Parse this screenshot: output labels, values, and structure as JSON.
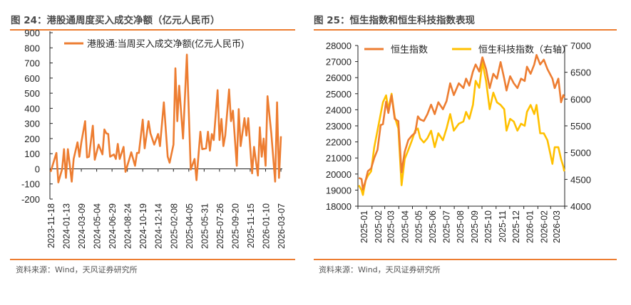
{
  "colors": {
    "accent": "#ED7D31",
    "hsi": "#ED7D31",
    "hstech": "#FFC000",
    "text": "#4a4a4a"
  },
  "left": {
    "title": "图 24：港股通周度买入成交净额（亿元人民币）",
    "source": "资料来源：Wind，天风证券研究所"
  },
  "right": {
    "title": "图 25：恒生指数和恒生科技指数表现",
    "source": "资料来源：Wind，天风证券研究所"
  },
  "chart_data": [
    {
      "type": "line",
      "title": "图 24：港股通周度买入成交净额（亿元人民币）",
      "ylim": [
        -200,
        900
      ],
      "yticks": [
        900,
        800,
        700,
        600,
        500,
        400,
        300,
        200,
        100,
        0,
        -100,
        -200
      ],
      "xlim": [
        "2023-11-18",
        "2026-03-07"
      ],
      "xticks": [
        "2023-11-18",
        "2024-01-13",
        "2024-03-09",
        "2024-05-04",
        "2024-06-29",
        "2024-08-24",
        "2024-10-19",
        "2024-12-14",
        "2025-02-08",
        "2025-04-05",
        "2025-05-31",
        "2025-07-26",
        "2025-09-20",
        "2025-11-15",
        "2026-01-10",
        "2026-03-07"
      ],
      "legend": "top-left",
      "grid": false,
      "series": [
        {
          "name": "港股通:当周买入成交净额(亿元人民币)",
          "color": "#ED7D31",
          "points": [
            [
              "2023-11-18",
              -20
            ],
            [
              "2023-12-09",
              105
            ],
            [
              "2023-12-16",
              -90
            ],
            [
              "2023-12-30",
              0
            ],
            [
              "2024-01-06",
              130
            ],
            [
              "2024-01-13",
              -60
            ],
            [
              "2024-01-20",
              130
            ],
            [
              "2024-02-03",
              -85
            ],
            [
              "2024-02-10",
              65
            ],
            [
              "2024-02-24",
              175
            ],
            [
              "2024-03-02",
              80
            ],
            [
              "2024-03-09",
              175
            ],
            [
              "2024-03-23",
              315
            ],
            [
              "2024-03-30",
              75
            ],
            [
              "2024-04-06",
              80
            ],
            [
              "2024-04-20",
              285
            ],
            [
              "2024-04-27",
              60
            ],
            [
              "2024-05-11",
              160
            ],
            [
              "2024-05-25",
              95
            ],
            [
              "2024-06-01",
              260
            ],
            [
              "2024-06-08",
              235
            ],
            [
              "2024-06-15",
              230
            ],
            [
              "2024-06-22",
              80
            ],
            [
              "2024-07-06",
              95
            ],
            [
              "2024-07-13",
              65
            ],
            [
              "2024-07-20",
              165
            ],
            [
              "2024-07-27",
              65
            ],
            [
              "2024-08-10",
              145
            ],
            [
              "2024-08-17",
              -20
            ],
            [
              "2024-08-31",
              65
            ],
            [
              "2024-09-07",
              110
            ],
            [
              "2024-09-21",
              20
            ],
            [
              "2024-09-28",
              105
            ],
            [
              "2024-10-05",
              105
            ],
            [
              "2024-10-19",
              325
            ],
            [
              "2024-10-26",
              135
            ],
            [
              "2024-11-09",
              315
            ],
            [
              "2024-11-16",
              235
            ],
            [
              "2024-11-30",
              160
            ],
            [
              "2024-12-14",
              230
            ],
            [
              "2024-12-21",
              150
            ],
            [
              "2025-01-04",
              440
            ],
            [
              "2025-01-18",
              80
            ],
            [
              "2025-01-25",
              40
            ],
            [
              "2025-02-08",
              160
            ],
            [
              "2025-02-15",
              665
            ],
            [
              "2025-02-22",
              315
            ],
            [
              "2025-03-01",
              550
            ],
            [
              "2025-03-15",
              200
            ],
            [
              "2025-03-29",
              755
            ],
            [
              "2025-04-12",
              -5
            ],
            [
              "2025-04-26",
              65
            ],
            [
              "2025-05-03",
              -75
            ],
            [
              "2025-05-17",
              245
            ],
            [
              "2025-05-24",
              130
            ],
            [
              "2025-06-07",
              135
            ],
            [
              "2025-06-14",
              245
            ],
            [
              "2025-06-21",
              120
            ],
            [
              "2025-06-28",
              230
            ],
            [
              "2025-07-05",
              190
            ],
            [
              "2025-07-19",
              520
            ],
            [
              "2025-07-26",
              190
            ],
            [
              "2025-08-02",
              330
            ],
            [
              "2025-08-09",
              150
            ],
            [
              "2025-08-16",
              220
            ],
            [
              "2025-08-30",
              525
            ],
            [
              "2025-09-06",
              315
            ],
            [
              "2025-09-13",
              385
            ],
            [
              "2025-09-27",
              20
            ],
            [
              "2025-10-04",
              395
            ],
            [
              "2025-10-11",
              150
            ],
            [
              "2025-10-25",
              335
            ],
            [
              "2025-11-01",
              220
            ],
            [
              "2025-11-08",
              335
            ],
            [
              "2025-11-15",
              145
            ],
            [
              "2025-11-22",
              -30
            ],
            [
              "2025-11-29",
              145
            ],
            [
              "2025-12-13",
              -45
            ],
            [
              "2025-12-20",
              275
            ],
            [
              "2025-12-27",
              80
            ],
            [
              "2026-01-03",
              200
            ],
            [
              "2026-01-10",
              20
            ],
            [
              "2026-01-17",
              480
            ],
            [
              "2026-01-31",
              235
            ],
            [
              "2026-02-14",
              -85
            ],
            [
              "2026-02-21",
              440
            ],
            [
              "2026-02-28",
              -60
            ],
            [
              "2026-03-07",
              215
            ]
          ]
        }
      ]
    },
    {
      "type": "line",
      "title": "图 25：恒生指数和恒生科技指数表现",
      "ylim": [
        18000,
        28000
      ],
      "yticks": [
        28000,
        27000,
        26000,
        25000,
        24000,
        23000,
        22000,
        21000,
        20000,
        19000,
        18000
      ],
      "y2lim": [
        4000,
        7000
      ],
      "y2ticks": [
        7000,
        6500,
        6000,
        5500,
        5000,
        4500,
        4000
      ],
      "xlim": [
        "2025-01-01",
        "2026-04-01"
      ],
      "xticks": [
        "2025-01",
        "2025-02",
        "2025-03",
        "2025-04",
        "2025-05",
        "2025-06",
        "2025-07",
        "2025-08",
        "2025-09",
        "2025-10",
        "2025-11",
        "2025-12",
        "2026-01",
        "2026-02",
        "2026-03"
      ],
      "legend": "top",
      "grid": false,
      "x": [
        "2025-01-03",
        "2025-01-09",
        "2025-01-12",
        "2025-01-18",
        "2025-01-23",
        "2025-01-30",
        "2025-02-06",
        "2025-02-13",
        "2025-02-20",
        "2025-02-25",
        "2025-03-04",
        "2025-03-09",
        "2025-03-16",
        "2025-03-23",
        "2025-03-31",
        "2025-04-07",
        "2025-04-14",
        "2025-04-22",
        "2025-04-30",
        "2025-05-07",
        "2025-05-13",
        "2025-05-18",
        "2025-05-26",
        "2025-06-03",
        "2025-06-11",
        "2025-06-19",
        "2025-06-27",
        "2025-07-07",
        "2025-07-15",
        "2025-07-23",
        "2025-07-31",
        "2025-08-11",
        "2025-08-21",
        "2025-08-27",
        "2025-09-03",
        "2025-09-11",
        "2025-09-17",
        "2025-09-25",
        "2025-10-02",
        "2025-10-10",
        "2025-10-18",
        "2025-10-26",
        "2025-11-03",
        "2025-11-11",
        "2025-11-19",
        "2025-11-24",
        "2025-12-02",
        "2025-12-10",
        "2025-12-18",
        "2025-12-26",
        "2026-01-03",
        "2026-01-08",
        "2026-01-16",
        "2026-01-24",
        "2026-01-29",
        "2026-02-06",
        "2026-02-14",
        "2026-02-22",
        "2026-03-05",
        "2026-03-10",
        "2026-03-18",
        "2026-03-24",
        "2026-03-29",
        "2026-03-31"
      ],
      "series": [
        {
          "name": "恒生指数",
          "axis": "left",
          "color": "#ED7D31",
          "values": [
            19760,
            19690,
            19030,
            19600,
            20180,
            20350,
            21000,
            21500,
            23050,
            23100,
            24500,
            23800,
            24900,
            23440,
            23290,
            20100,
            21380,
            22120,
            22400,
            22560,
            23590,
            23400,
            23300,
            23730,
            24320,
            23730,
            24470,
            24030,
            24540,
            25650,
            24910,
            25650,
            25350,
            25940,
            25500,
            26380,
            26820,
            26380,
            27260,
            26530,
            25350,
            26240,
            25940,
            26970,
            25940,
            25200,
            26090,
            25650,
            25350,
            25940,
            25790,
            26680,
            26240,
            26820,
            27410,
            26820,
            27120,
            26530,
            25940,
            25350,
            25940,
            24470,
            24910,
            24760
          ]
        },
        {
          "name": "恒生科技指数（右轴）",
          "axis": "right",
          "color": "#FFC000",
          "values": [
            4390,
            4300,
            4210,
            4480,
            4570,
            4650,
            5100,
            5410,
            5720,
            5940,
            6070,
            5810,
            6100,
            5670,
            5450,
            4390,
            4880,
            5050,
            5230,
            5410,
            5450,
            5270,
            5190,
            5270,
            5410,
            5100,
            5360,
            5230,
            5450,
            5720,
            5410,
            5540,
            5580,
            5760,
            5630,
            5890,
            6340,
            6210,
            6690,
            6340,
            5810,
            6120,
            5940,
            5890,
            5810,
            5410,
            5630,
            5580,
            5410,
            5540,
            5500,
            5760,
            5890,
            5720,
            5890,
            5360,
            5360,
            5230,
            4790,
            5100,
            5100,
            4880,
            4740,
            4650
          ]
        }
      ]
    }
  ]
}
